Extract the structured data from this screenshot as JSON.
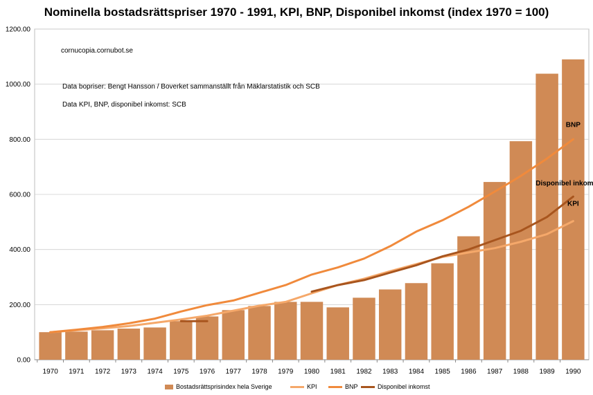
{
  "chart_data": {
    "type": "bar",
    "title": "Nominella bostadsrättspriser 1970 - 1991, KPI, BNP, Disponibel inkomst (index 1970 = 100)",
    "categories": [
      "1970",
      "1971",
      "1972",
      "1973",
      "1974",
      "1975",
      "1976",
      "1977",
      "1978",
      "1979",
      "1980",
      "1981",
      "1982",
      "1983",
      "1984",
      "1985",
      "1986",
      "1987",
      "1988",
      "1989",
      "1990"
    ],
    "ylim": [
      0,
      1200
    ],
    "yticks": [
      "0.00",
      "200.00",
      "400.00",
      "600.00",
      "800.00",
      "1000.00",
      "1200.00"
    ],
    "grid": true,
    "legend_position": "bottom",
    "annotations": [
      "cornucopia.cornubot.se",
      "Data bopriser: Bengt Hansson / Boverket sammanställt från Mäklarstatistik och SCB",
      "Data KPI, BNP, disponibel inkomst: SCB"
    ],
    "series": [
      {
        "name": "Bostadsrättsprisindex hela Sverige",
        "kind": "bar",
        "color": "#D08A55",
        "values": [
          100,
          102,
          107,
          113,
          117,
          140,
          157,
          180,
          195,
          210,
          210,
          190,
          225,
          255,
          278,
          350,
          448,
          645,
          793,
          1038,
          1090
        ]
      },
      {
        "name": "KPI",
        "kind": "line",
        "color": "#F5A86A",
        "label": "KPI",
        "values": [
          100,
          107,
          114,
          122,
          134,
          146,
          160,
          178,
          196,
          210,
          241,
          271,
          294,
          321,
          347,
          373,
          389,
          405,
          428,
          456,
          503
        ]
      },
      {
        "name": "BNP",
        "kind": "line",
        "color": "#F08A3C",
        "label": "BNP",
        "values": [
          100,
          109,
          119,
          132,
          149,
          175,
          198,
          215,
          243,
          271,
          309,
          335,
          367,
          412,
          465,
          506,
          555,
          610,
          667,
          730,
          800
        ]
      },
      {
        "name": "Disponibel inkomst",
        "kind": "line",
        "color": "#A8551E",
        "label": "Disponibel inkomst",
        "values": [
          null,
          null,
          null,
          null,
          null,
          140,
          140,
          null,
          null,
          null,
          247,
          271,
          289,
          316,
          343,
          375,
          400,
          434,
          468,
          518,
          592
        ]
      }
    ]
  }
}
